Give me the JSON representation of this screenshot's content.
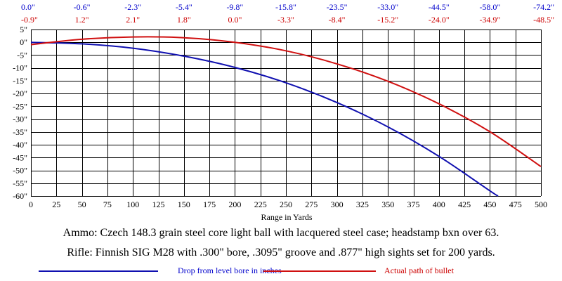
{
  "chart_data": {
    "type": "line",
    "xlabel": "Range in Yards",
    "ylabel": "",
    "xlim": [
      0,
      500
    ],
    "ylim": [
      -60,
      5
    ],
    "x_ticks": [
      0,
      25,
      50,
      75,
      100,
      125,
      150,
      175,
      200,
      225,
      250,
      275,
      300,
      325,
      350,
      375,
      400,
      425,
      450,
      475,
      500
    ],
    "y_ticks": [
      "5\"",
      "0\"",
      "-5\"",
      "-10\"",
      "-15\"",
      "-20\"",
      "-25\"",
      "-30\"",
      "-35\"",
      "-40\"",
      "-45\"",
      "-50\"",
      "-55\"",
      "-60\""
    ],
    "y_tick_values": [
      5,
      0,
      -5,
      -10,
      -15,
      -20,
      -25,
      -30,
      -35,
      -40,
      -45,
      -50,
      -55,
      -60
    ],
    "grid": true,
    "top_labels": {
      "x_positions": [
        0,
        50,
        100,
        150,
        200,
        250,
        300,
        350,
        400,
        450,
        500
      ],
      "drop": [
        "0.0\"",
        "-0.6\"",
        "-2.3\"",
        "-5.4\"",
        "-9.8\"",
        "-15.8\"",
        "-23.5\"",
        "-33.0\"",
        "-44.5\"",
        "-58.0\"",
        "-74.2\""
      ],
      "path": [
        "-0.9\"",
        "1.2\"",
        "2.1\"",
        "1.8\"",
        "0.0\"",
        "-3.3\"",
        "-8.4\"",
        "-15.2\"",
        "-24.0\"",
        "-34.9\"",
        "-48.5\""
      ]
    },
    "series": [
      {
        "name": "Drop from level bore in inches",
        "color": "#1010b0",
        "x": [
          0,
          50,
          100,
          150,
          200,
          250,
          300,
          350,
          400,
          450,
          458
        ],
        "y": [
          0.0,
          -0.6,
          -2.3,
          -5.4,
          -9.8,
          -15.8,
          -23.5,
          -33.0,
          -44.5,
          -58.0,
          -60.0
        ]
      },
      {
        "name": "Actual path of bullet",
        "color": "#d01010",
        "x": [
          0,
          50,
          100,
          150,
          200,
          250,
          300,
          350,
          400,
          450,
          500
        ],
        "y": [
          -0.9,
          1.2,
          2.1,
          1.8,
          0.0,
          -3.3,
          -8.4,
          -15.2,
          -24.0,
          -34.9,
          -48.5
        ]
      }
    ]
  },
  "captions": {
    "ammo": "Ammo:  Czech 148.3 grain steel core light ball with lacquered steel case; headstamp bxn over 63.",
    "rifle": "Rifle:  Finnish SIG M28 with .300\" bore, .3095\" groove and .877\" high sights set for 200 yards."
  },
  "legend": {
    "drop": "Drop from level bore in inches",
    "path": "Actual path of bullet"
  },
  "colors": {
    "drop_text": "#0000cc",
    "path_text": "#cc0000",
    "grid": "#000000"
  }
}
